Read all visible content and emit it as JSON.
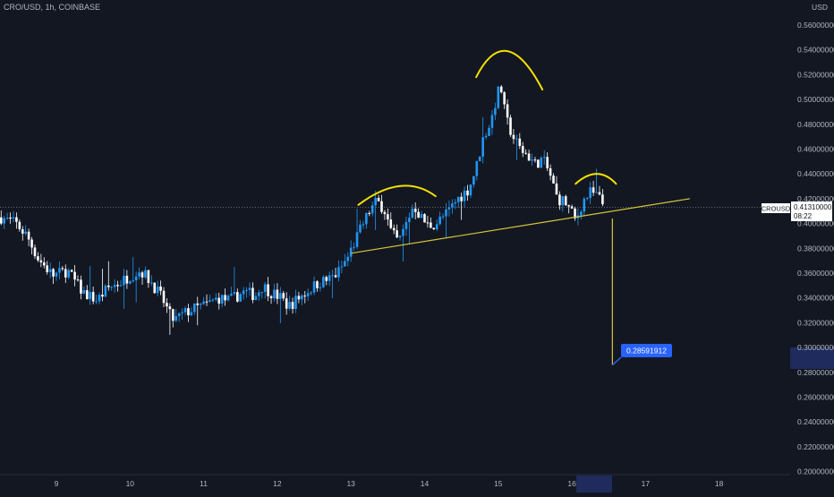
{
  "header": {
    "symbol_line": "CRO/USD, 1h, COINBASE"
  },
  "price_axis": {
    "unit": "USD",
    "ticks": [
      "0.56000000",
      "0.54000000",
      "0.52000000",
      "0.50000000",
      "0.48000000",
      "0.46000000",
      "0.44000000",
      "0.42000000",
      "0.40000000",
      "0.38000000",
      "0.36000000",
      "0.34000000",
      "0.32000000",
      "0.30000000",
      "0.28000000",
      "0.26000000",
      "0.24000000",
      "0.22000000",
      "0.20000000"
    ],
    "current_symbol": "CROUSD",
    "current_price": "0.41310000",
    "countdown": "08:22"
  },
  "time_axis": {
    "labels": [
      "9",
      "10",
      "11",
      "12",
      "13",
      "14",
      "15",
      "16",
      "17",
      "18"
    ]
  },
  "target_label": {
    "text": "0.28591912"
  },
  "colors": {
    "background": "#131722",
    "up": "#2196f3",
    "down": "#ffffff",
    "annotation": "#f5e000",
    "trendline": "#d6c53a",
    "label_bg": "#2962ff",
    "axis_highlight": "#1e2b5c"
  },
  "chart_data": {
    "type": "candlestick",
    "symbol": "CRO/USD",
    "interval": "1h",
    "exchange": "COINBASE",
    "x_unit": "day_of_month",
    "ylim": [
      0.2,
      0.57
    ],
    "current_price": 0.4131,
    "series_close": [
      [
        8.25,
        0.405
      ],
      [
        8.45,
        0.4
      ],
      [
        8.6,
        0.39
      ],
      [
        8.75,
        0.372
      ],
      [
        8.95,
        0.358
      ],
      [
        9.15,
        0.362
      ],
      [
        9.35,
        0.345
      ],
      [
        9.55,
        0.338
      ],
      [
        9.7,
        0.348
      ],
      [
        9.85,
        0.352
      ],
      [
        10.0,
        0.358
      ],
      [
        10.15,
        0.362
      ],
      [
        10.3,
        0.352
      ],
      [
        10.45,
        0.338
      ],
      [
        10.55,
        0.325
      ],
      [
        10.6,
        0.322
      ],
      [
        10.75,
        0.328
      ],
      [
        10.9,
        0.332
      ],
      [
        11.05,
        0.335
      ],
      [
        11.2,
        0.34
      ],
      [
        11.35,
        0.338
      ],
      [
        11.55,
        0.345
      ],
      [
        11.7,
        0.342
      ],
      [
        11.8,
        0.35
      ],
      [
        11.9,
        0.345
      ],
      [
        12.05,
        0.34
      ],
      [
        12.15,
        0.333
      ],
      [
        12.25,
        0.338
      ],
      [
        12.4,
        0.345
      ],
      [
        12.55,
        0.352
      ],
      [
        12.7,
        0.355
      ],
      [
        12.82,
        0.36
      ],
      [
        12.95,
        0.372
      ],
      [
        13.05,
        0.385
      ],
      [
        13.15,
        0.398
      ],
      [
        13.25,
        0.41
      ],
      [
        13.35,
        0.418
      ],
      [
        13.45,
        0.412
      ],
      [
        13.55,
        0.392
      ],
      [
        13.65,
        0.385
      ],
      [
        13.75,
        0.4
      ],
      [
        13.85,
        0.415
      ],
      [
        13.95,
        0.405
      ],
      [
        14.05,
        0.398
      ],
      [
        14.15,
        0.4
      ],
      [
        14.3,
        0.408
      ],
      [
        14.45,
        0.42
      ],
      [
        14.6,
        0.428
      ],
      [
        14.7,
        0.445
      ],
      [
        14.8,
        0.47
      ],
      [
        14.9,
        0.482
      ],
      [
        14.97,
        0.5
      ],
      [
        15.03,
        0.512
      ],
      [
        15.1,
        0.485
      ],
      [
        15.2,
        0.47
      ],
      [
        15.3,
        0.46
      ],
      [
        15.4,
        0.455
      ],
      [
        15.5,
        0.448
      ],
      [
        15.6,
        0.452
      ],
      [
        15.7,
        0.44
      ],
      [
        15.8,
        0.42
      ],
      [
        15.9,
        0.418
      ],
      [
        16.0,
        0.408
      ],
      [
        16.05,
        0.402
      ],
      [
        16.15,
        0.418
      ],
      [
        16.25,
        0.425
      ],
      [
        16.35,
        0.422
      ],
      [
        16.45,
        0.4131
      ]
    ],
    "annotations": {
      "pattern": "head-and-shoulders",
      "neckline_points": [
        [
          13.0,
          0.376
        ],
        [
          17.6,
          0.42
        ]
      ],
      "projection_from": [
        16.55,
        0.404
      ],
      "projection_to": [
        16.55,
        0.2859
      ],
      "target": 0.28591912
    }
  }
}
